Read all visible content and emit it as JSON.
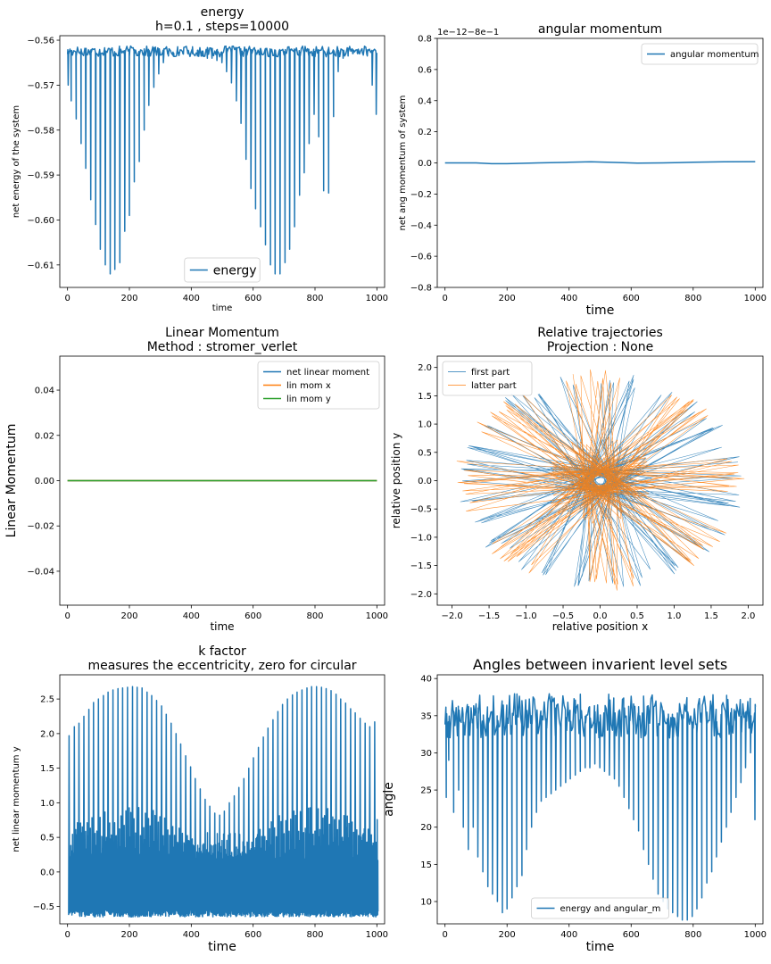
{
  "figure": {
    "background": "#ffffff"
  },
  "chart_data": [
    {
      "id": "energy",
      "type": "line",
      "title": [
        "energy",
        "h=0.1 , steps=10000"
      ],
      "xlabel": "time",
      "ylabel": "net energy of the system",
      "xlim": [
        -25,
        1025
      ],
      "ylim": [
        -0.615,
        -0.559
      ],
      "xticks": [
        0,
        200,
        400,
        600,
        800,
        1000
      ],
      "yticks": [
        -0.56,
        -0.57,
        -0.58,
        -0.59,
        -0.6,
        -0.61
      ],
      "ytick_labels": [
        "−0.56",
        "−0.57",
        "−0.58",
        "−0.59",
        "−0.60",
        "−0.61"
      ],
      "offset_text": "",
      "legend": {
        "placement": "lower-center",
        "entries": [
          "energy"
        ]
      },
      "series": [
        {
          "name": "energy",
          "color": "#1f77b4",
          "generator": "spikes",
          "base": -0.5625,
          "jitter": 0.0012,
          "spike_dir": -1,
          "spike_x": [
            2,
            12,
            28,
            44,
            59,
            75,
            91,
            106,
            122,
            138,
            153,
            169,
            185,
            200,
            216,
            232,
            248,
            263,
            279,
            295,
            310,
            326,
            342,
            357,
            373,
            389,
            404,
            420,
            436,
            452,
            467,
            483,
            499,
            514,
            530,
            546,
            561,
            577,
            593,
            608,
            624,
            640,
            656,
            671,
            687,
            703,
            718,
            734,
            750,
            765,
            781,
            797,
            812,
            828,
            844,
            860,
            875,
            891,
            907,
            922,
            938,
            954,
            969,
            985,
            998
          ],
          "spike_y": [
            -0.57,
            -0.5735,
            -0.5775,
            -0.583,
            -0.5885,
            -0.5955,
            -0.601,
            -0.6065,
            -0.61,
            -0.612,
            -0.611,
            -0.6095,
            -0.6025,
            -0.599,
            -0.5915,
            -0.587,
            -0.58,
            -0.5745,
            -0.5705,
            -0.5675,
            -0.565,
            -0.5635,
            -0.5635,
            -0.563,
            -0.563,
            -0.563,
            -0.563,
            -0.5635,
            -0.5635,
            -0.564,
            -0.564,
            -0.5645,
            -0.565,
            -0.567,
            -0.5695,
            -0.5735,
            -0.5785,
            -0.5865,
            -0.593,
            -0.5975,
            -0.6015,
            -0.6055,
            -0.61,
            -0.612,
            -0.612,
            -0.6095,
            -0.6065,
            -0.6015,
            -0.5945,
            -0.5895,
            -0.583,
            -0.5765,
            -0.5815,
            -0.5935,
            -0.594,
            -0.577,
            -0.567,
            -0.564,
            -0.5635,
            -0.563,
            -0.563,
            -0.563,
            -0.5635,
            -0.57,
            -0.5765
          ]
        }
      ]
    },
    {
      "id": "angular",
      "type": "line",
      "title": [
        "angular momentum"
      ],
      "xlabel": "time",
      "ylabel": "net ang momentum of system",
      "xlim": [
        -25,
        1025
      ],
      "ylim": [
        -0.8,
        0.8
      ],
      "xticks": [
        0,
        200,
        400,
        600,
        800,
        1000
      ],
      "yticks": [
        0.8,
        0.6,
        0.4,
        0.2,
        0.0,
        -0.2,
        -0.4,
        -0.6,
        -0.8
      ],
      "ytick_labels": [
        "0.8",
        "0.6",
        "0.4",
        "0.2",
        "0.0",
        "−0.2",
        "−0.4",
        "−0.6",
        "−0.8"
      ],
      "offset_text": "1e−12−8e−1",
      "legend": {
        "placement": "top-right",
        "entries": [
          "angular momentum"
        ]
      },
      "series": [
        {
          "name": "angular momentum",
          "color": "#1f77b4",
          "x": [
            0,
            100,
            150,
            200,
            300,
            400,
            470,
            550,
            620,
            700,
            800,
            900,
            1000
          ],
          "y": [
            0.0,
            0.0,
            -0.005,
            -0.005,
            0.0,
            0.004,
            0.007,
            0.003,
            -0.002,
            0.0,
            0.004,
            0.007,
            0.008
          ]
        }
      ]
    },
    {
      "id": "linear",
      "type": "line",
      "title": [
        "Linear Momentum",
        "Method : stromer_verlet"
      ],
      "xlabel": "time",
      "ylabel": "Linear Momentum",
      "xlim": [
        -25,
        1025
      ],
      "ylim": [
        -0.055,
        0.055
      ],
      "xticks": [
        0,
        200,
        400,
        600,
        800,
        1000
      ],
      "yticks": [
        0.04,
        0.02,
        0.0,
        -0.02,
        -0.04
      ],
      "ytick_labels": [
        "0.04",
        "0.02",
        "0.00",
        "−0.02",
        "−0.04"
      ],
      "offset_text": "",
      "legend": {
        "placement": "top-right",
        "entries": [
          "net linear moment",
          "lin mom x",
          "lin mom y"
        ]
      },
      "series": [
        {
          "name": "net linear moment",
          "color": "#1f77b4",
          "x": [
            0,
            1000
          ],
          "y": [
            0,
            0
          ]
        },
        {
          "name": "lin mom x",
          "color": "#ff7f0e",
          "x": [
            0,
            1000
          ],
          "y": [
            0,
            0
          ]
        },
        {
          "name": "lin mom y",
          "color": "#2ca02c",
          "x": [
            0,
            1000
          ],
          "y": [
            0,
            0
          ]
        }
      ]
    },
    {
      "id": "trajectories",
      "type": "line",
      "title": [
        "Relative trajectories",
        "Projection : None"
      ],
      "xlabel": "relative position x",
      "ylabel": "relative position y",
      "xlim": [
        -2.2,
        2.2
      ],
      "ylim": [
        -2.2,
        2.2
      ],
      "xticks": [
        -2.0,
        -1.5,
        -1.0,
        -0.5,
        0.0,
        0.5,
        1.0,
        1.5,
        2.0
      ],
      "xtick_labels": [
        "−2.0",
        "−1.5",
        "−1.0",
        "−0.5",
        "0.0",
        "0.5",
        "1.0",
        "1.5",
        "2.0"
      ],
      "yticks": [
        2.0,
        1.5,
        1.0,
        0.5,
        0.0,
        -0.5,
        -1.0,
        -1.5,
        -2.0
      ],
      "ytick_labels": [
        "2.0",
        "1.5",
        "1.0",
        "0.5",
        "0.0",
        "−0.5",
        "−1.0",
        "−1.5",
        "−2.0"
      ],
      "offset_text": "",
      "legend": {
        "placement": "top-left",
        "entries": [
          "first part",
          "latter part"
        ]
      },
      "series": [
        {
          "name": "first part",
          "color": "#1f77b4",
          "generator": "rosette",
          "rmin": 0.15,
          "rmax": 1.95,
          "step_deg": 158.2,
          "count": 160,
          "phase_deg": 10
        },
        {
          "name": "latter part",
          "color": "#ff7f0e",
          "generator": "rosette",
          "rmin": 0.2,
          "rmax": 1.98,
          "step_deg": 157.4,
          "count": 160,
          "phase_deg": 101
        }
      ]
    },
    {
      "id": "kfactor",
      "type": "line",
      "title": [
        "k factor",
        "measures the eccentricity, zero for circular"
      ],
      "xlabel": "time",
      "ylabel": "net linear momentum y",
      "xlim": [
        -25,
        1025
      ],
      "ylim": [
        -0.75,
        2.85
      ],
      "xticks": [
        0,
        200,
        400,
        600,
        800,
        1000
      ],
      "yticks": [
        2.5,
        2.0,
        1.5,
        1.0,
        0.5,
        0.0,
        -0.5
      ],
      "ytick_labels": [
        "2.5",
        "2.0",
        "1.5",
        "1.0",
        "0.5",
        "0.0",
        "−0.5"
      ],
      "offset_text": "",
      "legend": null,
      "series": [
        {
          "name": "",
          "color": "#1f77b4",
          "generator": "oscillation",
          "peak_x": [
            5,
            22,
            37,
            53,
            69,
            84,
            100,
            116,
            131,
            147,
            163,
            178,
            194,
            210,
            225,
            241,
            257,
            272,
            288,
            304,
            319,
            335,
            351,
            366,
            382,
            398,
            413,
            429,
            445,
            460,
            476,
            492,
            507,
            523,
            539,
            554,
            570,
            586,
            601,
            617,
            633,
            648,
            664,
            680,
            695,
            711,
            727,
            742,
            758,
            774,
            789,
            805,
            821,
            836,
            852,
            868,
            883,
            899,
            915,
            930,
            946,
            962,
            977,
            993
          ],
          "peak_y": [
            1.97,
            2.1,
            2.15,
            2.25,
            2.35,
            2.45,
            2.5,
            2.55,
            2.6,
            2.63,
            2.65,
            2.66,
            2.67,
            2.68,
            2.67,
            2.66,
            2.6,
            2.55,
            2.48,
            2.4,
            2.28,
            2.15,
            2.0,
            1.85,
            1.68,
            1.52,
            1.35,
            1.2,
            1.05,
            0.95,
            0.85,
            0.82,
            0.88,
            1.0,
            1.1,
            1.22,
            1.35,
            1.5,
            1.65,
            1.8,
            1.95,
            2.08,
            2.2,
            2.32,
            2.42,
            2.5,
            2.56,
            2.6,
            2.63,
            2.66,
            2.68,
            2.68,
            2.67,
            2.65,
            2.62,
            2.57,
            2.5,
            2.44,
            2.36,
            2.3,
            2.22,
            2.15,
            2.1,
            2.17
          ],
          "secondary": 0.95,
          "trough": -0.65
        }
      ]
    },
    {
      "id": "angles",
      "type": "line",
      "title": [
        "Angles between invarient level sets"
      ],
      "xlabel": "time",
      "ylabel": "angle",
      "xlim": [
        -25,
        1025
      ],
      "ylim": [
        7.0,
        40.5
      ],
      "xticks": [
        0,
        200,
        400,
        600,
        800,
        1000
      ],
      "yticks": [
        40,
        35,
        30,
        25,
        20,
        15,
        10
      ],
      "ytick_labels": [
        "40",
        "35",
        "30",
        "25",
        "20",
        "15",
        "10"
      ],
      "offset_text": "",
      "legend": {
        "placement": "lower-center",
        "entries": [
          "energy and angular_m"
        ]
      },
      "series": [
        {
          "name": "energy and angular_m",
          "color": "#1f77b4",
          "generator": "spikes",
          "base": 35.0,
          "jitter": 3.0,
          "spike_dir": -1,
          "spike_x": [
            4,
            12,
            28,
            44,
            59,
            75,
            91,
            106,
            122,
            138,
            153,
            169,
            185,
            200,
            216,
            232,
            248,
            263,
            279,
            295,
            310,
            326,
            342,
            357,
            373,
            389,
            404,
            420,
            436,
            452,
            467,
            483,
            499,
            514,
            530,
            546,
            561,
            577,
            593,
            608,
            624,
            640,
            656,
            671,
            687,
            703,
            718,
            734,
            750,
            765,
            781,
            797,
            812,
            828,
            844,
            860,
            875,
            891,
            907,
            922,
            938,
            954,
            969,
            985,
            999
          ],
          "spike_y": [
            24,
            29,
            22,
            25,
            20,
            17,
            20,
            16,
            14,
            12,
            11,
            10,
            8.5,
            9,
            10.5,
            12,
            13.5,
            17,
            20,
            22,
            23.5,
            24,
            24.5,
            25,
            25.5,
            26,
            26.5,
            27,
            27.5,
            28,
            28,
            28.5,
            28,
            27.5,
            27,
            26.5,
            25.5,
            24,
            22.5,
            21,
            19.5,
            17,
            15,
            13,
            11,
            10,
            9,
            8.5,
            8,
            7.5,
            7.5,
            8,
            9,
            10.5,
            12.5,
            14,
            16,
            18,
            20,
            22,
            24,
            26,
            28,
            30,
            21
          ]
        }
      ]
    }
  ]
}
